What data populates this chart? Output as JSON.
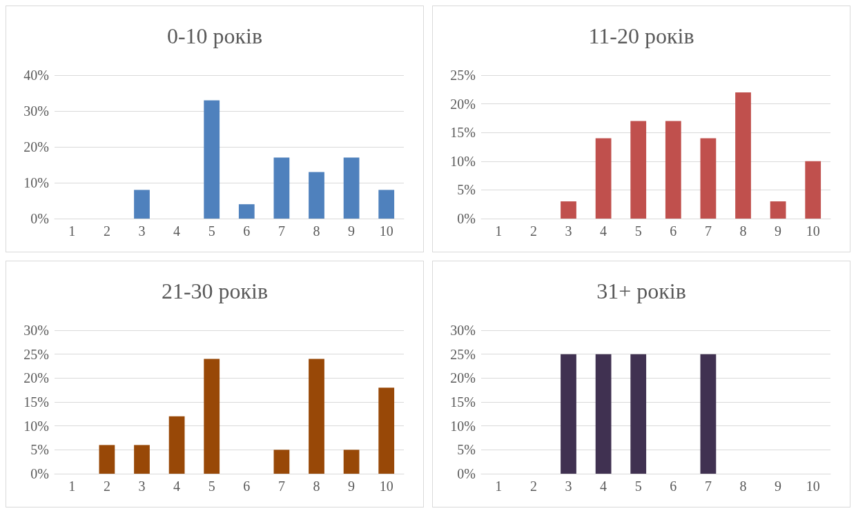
{
  "chart_data": [
    {
      "type": "bar",
      "title": "0-10 років",
      "categories": [
        "1",
        "2",
        "3",
        "4",
        "5",
        "6",
        "7",
        "8",
        "9",
        "10"
      ],
      "values": [
        0,
        0,
        8,
        0,
        33,
        4,
        17,
        13,
        17,
        8
      ],
      "color": "#4f81bd",
      "ylim": [
        0,
        40
      ],
      "yticks": [
        {
          "value": 0,
          "label": "0%"
        },
        {
          "value": 10,
          "label": "10%"
        },
        {
          "value": 20,
          "label": "20%"
        },
        {
          "value": 30,
          "label": "30%"
        },
        {
          "value": 40,
          "label": "40%"
        }
      ],
      "grid": "y"
    },
    {
      "type": "bar",
      "title": "11-20 років",
      "categories": [
        "1",
        "2",
        "3",
        "4",
        "5",
        "6",
        "7",
        "8",
        "9",
        "10"
      ],
      "values": [
        0,
        0,
        3,
        14,
        17,
        17,
        14,
        22,
        3,
        10
      ],
      "color": "#c0504d",
      "ylim": [
        0,
        25
      ],
      "yticks": [
        {
          "value": 0,
          "label": "0%"
        },
        {
          "value": 5,
          "label": "5%"
        },
        {
          "value": 10,
          "label": "10%"
        },
        {
          "value": 15,
          "label": "15%"
        },
        {
          "value": 20,
          "label": "20%"
        },
        {
          "value": 25,
          "label": "25%"
        }
      ],
      "grid": "y"
    },
    {
      "type": "bar",
      "title": "21-30 років",
      "categories": [
        "1",
        "2",
        "3",
        "4",
        "5",
        "6",
        "7",
        "8",
        "9",
        "10"
      ],
      "values": [
        0,
        6,
        6,
        12,
        24,
        0,
        5,
        24,
        5,
        18
      ],
      "color": "#984807",
      "ylim": [
        0,
        30
      ],
      "yticks": [
        {
          "value": 0,
          "label": "0%"
        },
        {
          "value": 5,
          "label": "5%"
        },
        {
          "value": 10,
          "label": "10%"
        },
        {
          "value": 15,
          "label": "15%"
        },
        {
          "value": 20,
          "label": "20%"
        },
        {
          "value": 25,
          "label": "25%"
        },
        {
          "value": 30,
          "label": "30%"
        }
      ],
      "grid": "y"
    },
    {
      "type": "bar",
      "title": "31+ років",
      "categories": [
        "1",
        "2",
        "3",
        "4",
        "5",
        "6",
        "7",
        "8",
        "9",
        "10"
      ],
      "values": [
        0,
        0,
        25,
        25,
        25,
        0,
        25,
        0,
        0,
        0
      ],
      "color": "#403151",
      "ylim": [
        0,
        30
      ],
      "yticks": [
        {
          "value": 0,
          "label": "0%"
        },
        {
          "value": 5,
          "label": "5%"
        },
        {
          "value": 10,
          "label": "10%"
        },
        {
          "value": 15,
          "label": "15%"
        },
        {
          "value": 20,
          "label": "20%"
        },
        {
          "value": 25,
          "label": "25%"
        },
        {
          "value": 30,
          "label": "30%"
        }
      ],
      "grid": "y"
    }
  ]
}
